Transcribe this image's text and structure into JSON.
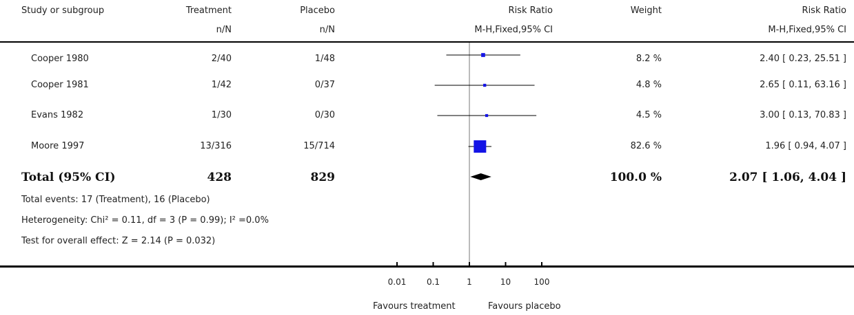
{
  "header": {
    "study_col": "Study or subgroup",
    "treatment_col": "Treatment",
    "placebo_col": "Placebo",
    "rr_col": "Risk Ratio",
    "weight_col": "Weight",
    "rr_ci_col": "Risk Ratio",
    "treatment_sub": "n/N",
    "placebo_sub": "n/N",
    "rr_sub": "M-H,Fixed,95% CI",
    "rr_ci_sub": "M-H,Fixed,95% CI"
  },
  "rows": [
    {
      "study": "Cooper 1980",
      "treatment": "2/40",
      "placebo": "1/48",
      "weight": "8.2 %",
      "ci_text": "2.40 [ 0.23, 25.51 ]"
    },
    {
      "study": "Cooper 1981",
      "treatment": "1/42",
      "placebo": "0/37",
      "weight": "4.8 %",
      "ci_text": "2.65 [ 0.11, 63.16 ]"
    },
    {
      "study": "Evans 1982",
      "treatment": "1/30",
      "placebo": "0/30",
      "weight": "4.5 %",
      "ci_text": "3.00 [ 0.13, 70.83 ]"
    },
    {
      "study": "Moore 1997",
      "treatment": "13/316",
      "placebo": "15/714",
      "weight": "82.6 %",
      "ci_text": "1.96 [ 0.94, 4.07 ]"
    }
  ],
  "total": {
    "label": "Total (95% CI)",
    "treatment": "428",
    "placebo": "829",
    "weight": "100.0 %",
    "ci_text": "2.07 [ 1.06, 4.04 ]"
  },
  "footnotes": {
    "events": "Total events: 17 (Treatment), 16 (Placebo)",
    "heterogeneity": "Heterogeneity: Chi² = 0.11, df = 3 (P = 0.99); I² =0.0%",
    "overall": "Test for overall effect: Z = 2.14 (P = 0.032)"
  },
  "axis": {
    "favours_left": "Favours treatment",
    "favours_right": "Favours placebo"
  },
  "colors": {
    "marker": "#1414e6",
    "line": "#000000"
  },
  "chart_data": {
    "type": "forest",
    "scale": "log",
    "xlim": [
      0.01,
      100
    ],
    "ticks": [
      0.01,
      0.1,
      1,
      10,
      100
    ],
    "tick_labels": [
      "0.01",
      "0.1",
      "1",
      "10",
      "100"
    ],
    "studies": [
      {
        "name": "Cooper 1980",
        "rr": 2.4,
        "lower": 0.23,
        "upper": 25.51,
        "weight": 8.2
      },
      {
        "name": "Cooper 1981",
        "rr": 2.65,
        "lower": 0.11,
        "upper": 63.16,
        "weight": 4.8
      },
      {
        "name": "Evans 1982",
        "rr": 3.0,
        "lower": 0.13,
        "upper": 70.83,
        "weight": 4.5
      },
      {
        "name": "Moore 1997",
        "rr": 1.96,
        "lower": 0.94,
        "upper": 4.07,
        "weight": 82.6
      }
    ],
    "pooled": {
      "rr": 2.07,
      "lower": 1.06,
      "upper": 4.04,
      "weight": 100.0
    }
  }
}
